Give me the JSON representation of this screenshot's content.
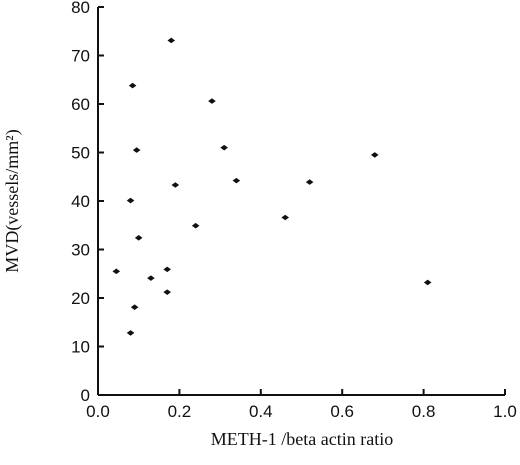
{
  "chart_data": {
    "type": "scatter",
    "title": "",
    "xlabel": "METH-1 /beta actin ratio",
    "ylabel": "MVD(vessels/mm²)",
    "xlim": [
      0.0,
      1.0
    ],
    "ylim": [
      0,
      80
    ],
    "xticks": [
      0.0,
      0.2,
      0.4,
      0.6,
      0.8,
      1.0
    ],
    "xtick_labels": [
      "0.0",
      "0.2",
      "0.4",
      "0.6",
      "0.8",
      "1.0"
    ],
    "yticks": [
      0,
      10,
      20,
      30,
      40,
      50,
      60,
      70,
      80
    ],
    "ytick_labels": [
      "0",
      "10",
      "20",
      "30",
      "40",
      "50",
      "60",
      "70",
      "80"
    ],
    "grid": false,
    "legend": false,
    "marker": "diamond",
    "point_color": "#111111",
    "series": [
      {
        "x": [
          0.045,
          0.08,
          0.08,
          0.085,
          0.09,
          0.095,
          0.1,
          0.13,
          0.17,
          0.17,
          0.18,
          0.19,
          0.24,
          0.28,
          0.31,
          0.34,
          0.46,
          0.52,
          0.68,
          0.81
        ],
        "y": [
          25.5,
          12.8,
          40.1,
          63.8,
          18.1,
          50.5,
          32.4,
          24.1,
          21.2,
          25.9,
          73.1,
          43.3,
          34.9,
          60.6,
          51.0,
          44.2,
          36.6,
          43.9,
          49.5,
          23.2
        ]
      }
    ]
  }
}
